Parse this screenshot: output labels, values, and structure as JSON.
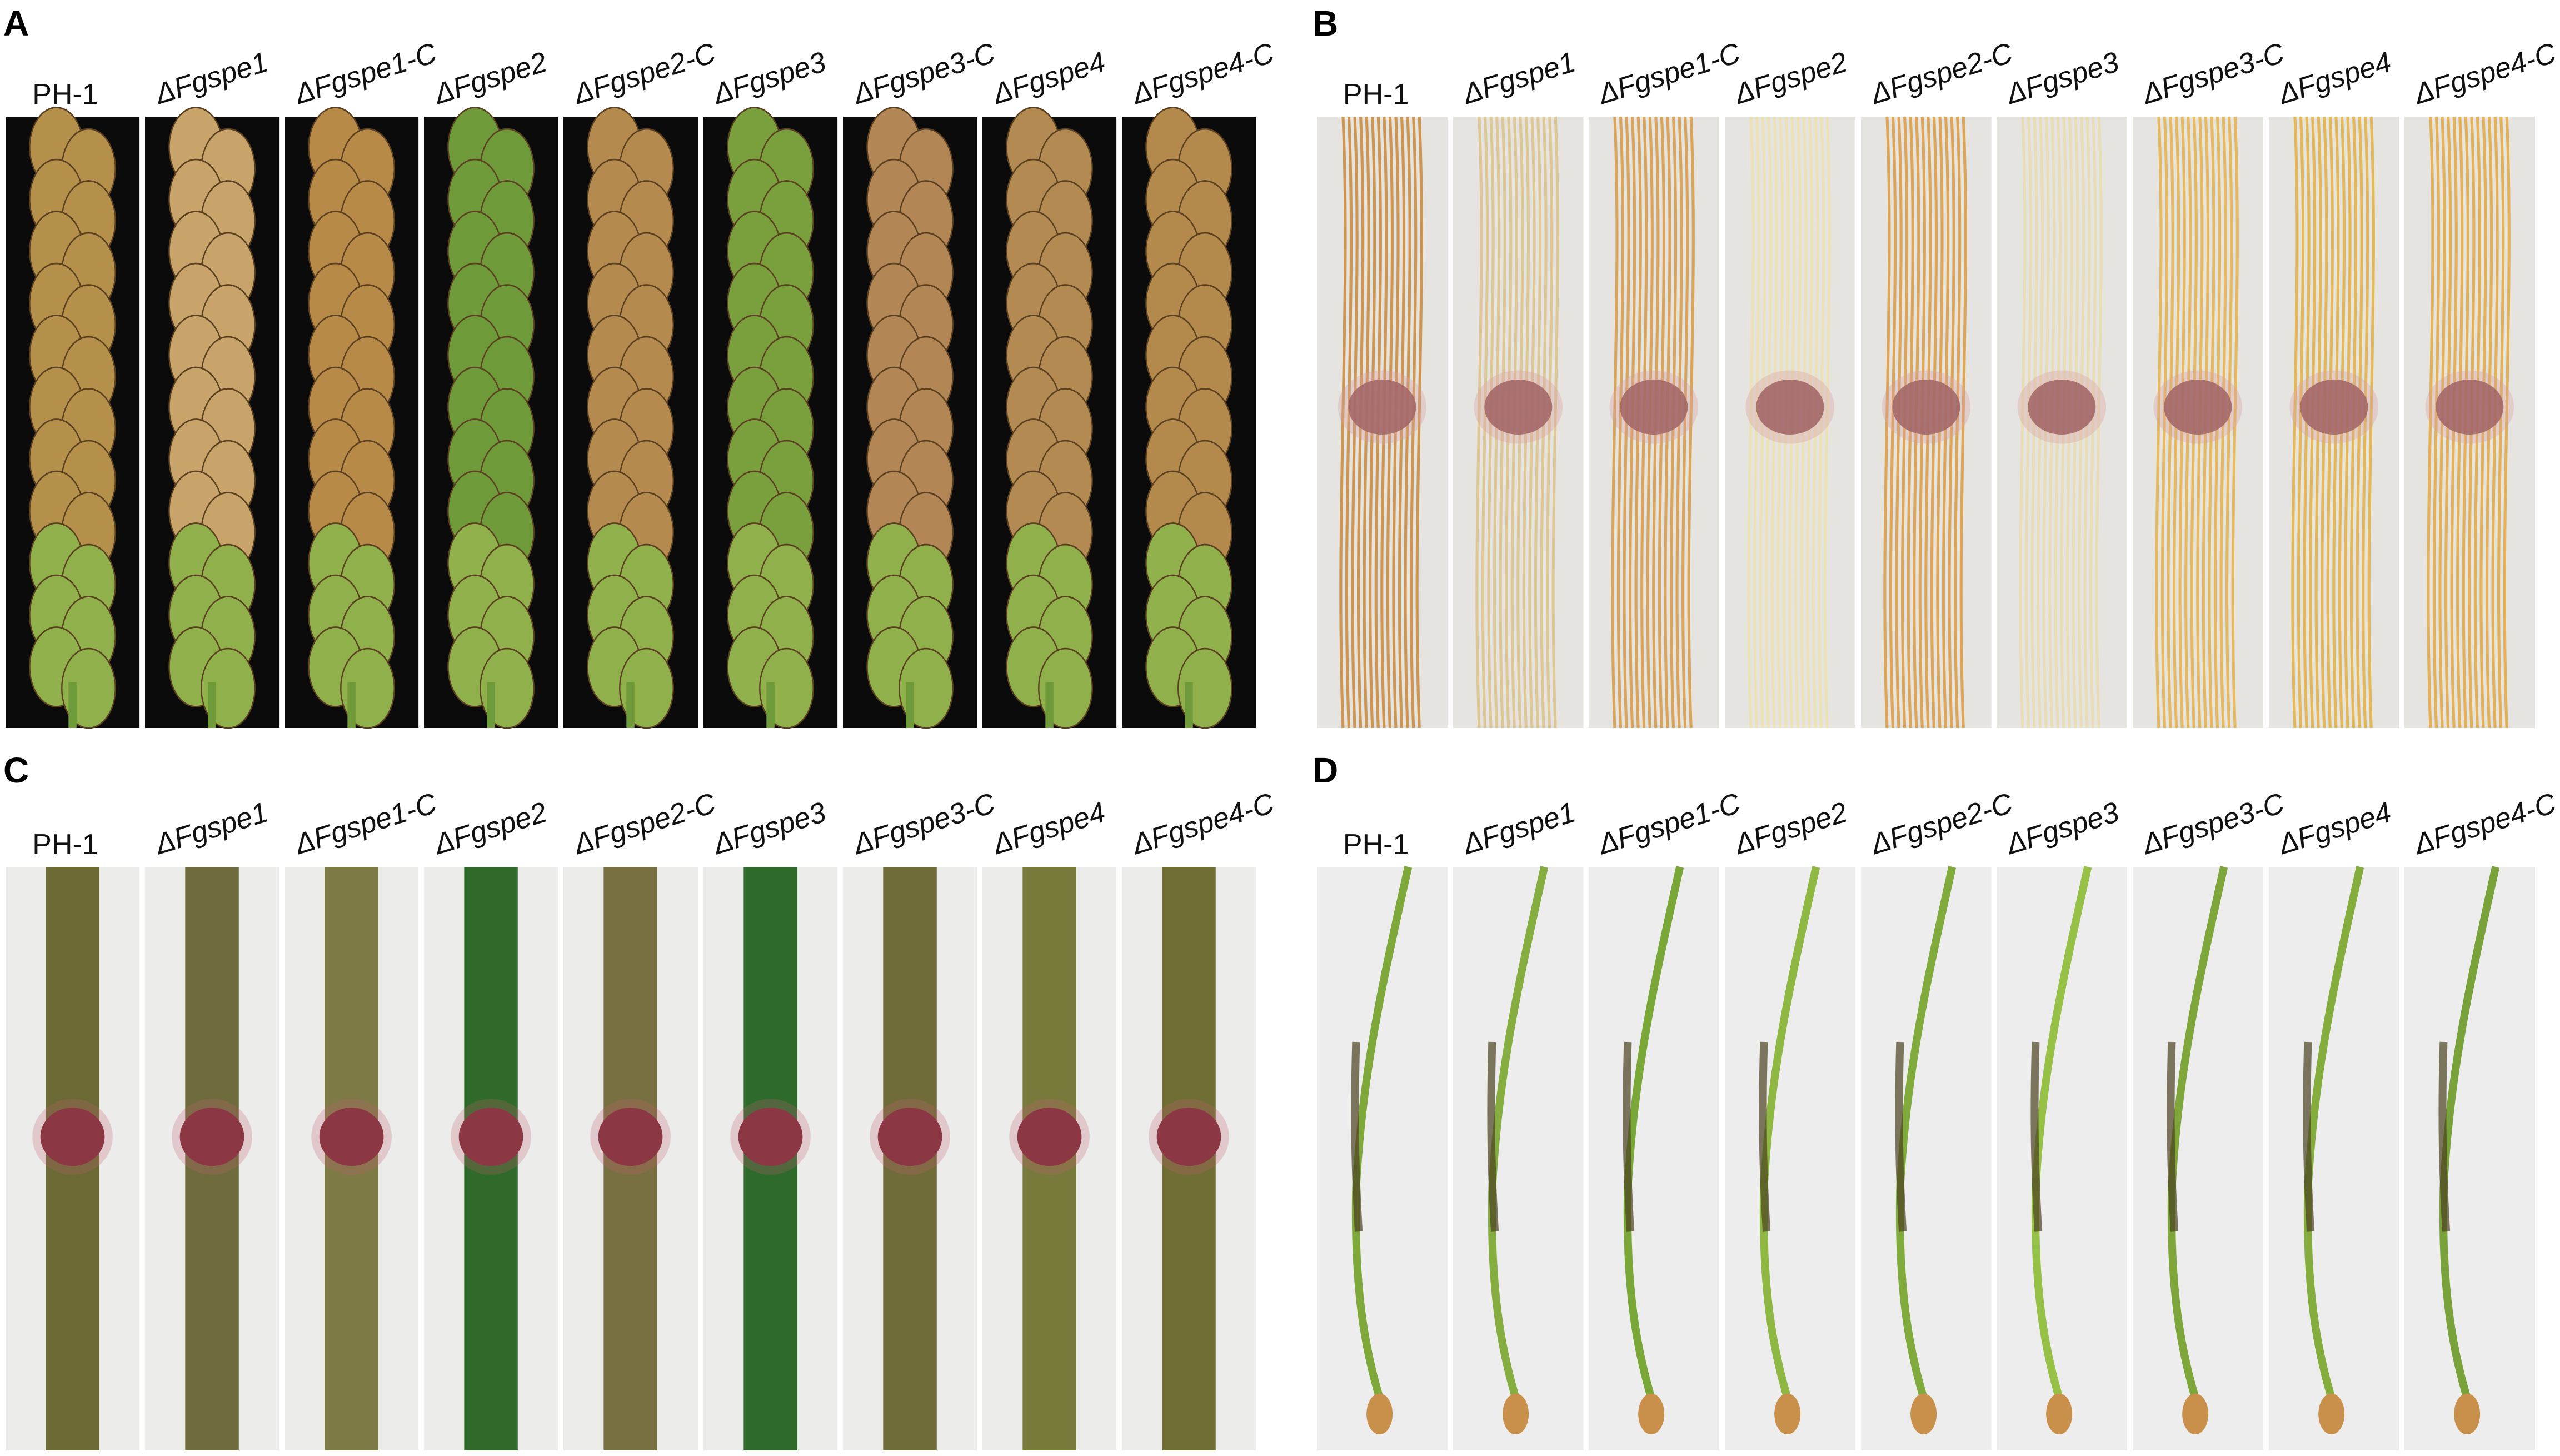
{
  "panels": [
    {
      "letter": "A",
      "kind": "spike",
      "labels": [
        "PH-1",
        "ΔFgspe1",
        "ΔFgspe1-C",
        "ΔFgspe2",
        "ΔFgspe2-C",
        "ΔFgspe3",
        "ΔFgspe3-C",
        "ΔFgspe4",
        "ΔFgspe4-C"
      ],
      "background": "#0b0b0b",
      "strip_colors": [
        "#b4904a",
        "#c8a46a",
        "#b88a48",
        "#6f9a3a",
        "#b58a4e",
        "#7aa03e",
        "#b38656",
        "#b28a52",
        "#b48a4c"
      ]
    },
    {
      "letter": "B",
      "kind": "root",
      "labels": [
        "PH-1",
        "ΔFgspe1",
        "ΔFgspe1-C",
        "ΔFgspe2",
        "ΔFgspe2-C",
        "ΔFgspe3",
        "ΔFgspe3-C",
        "ΔFgspe4",
        "ΔFgspe4-C"
      ],
      "background": "#e6e4e0",
      "strip_colors": [
        "#c88a3a",
        "#dcc28a",
        "#d69a44",
        "#ece2b0",
        "#d99a40",
        "#e6dcae",
        "#e4b248",
        "#e0b040",
        "#e0a840"
      ]
    },
    {
      "letter": "C",
      "kind": "coleoptile",
      "labels": [
        "PH-1",
        "ΔFgspe1",
        "ΔFgspe1-C",
        "ΔFgspe2",
        "ΔFgspe2-C",
        "ΔFgspe3",
        "ΔFgspe3-C",
        "ΔFgspe4",
        "ΔFgspe4-C"
      ],
      "background": "#ececea",
      "strip_colors": [
        "#6b6a34",
        "#6e6c3c",
        "#7e7a46",
        "#2f6a2a",
        "#787040",
        "#2e6a2c",
        "#706c3a",
        "#787a3c",
        "#6f6e34"
      ]
    },
    {
      "letter": "D",
      "kind": "seedling",
      "labels": [
        "PH-1",
        "ΔFgspe1",
        "ΔFgspe1-C",
        "ΔFgspe2",
        "ΔFgspe2-C",
        "ΔFgspe3",
        "ΔFgspe3-C",
        "ΔFgspe4",
        "ΔFgspe4-C"
      ],
      "background": "#ededed",
      "strip_colors": [
        "#7fa83a",
        "#86ad40",
        "#7aa838",
        "#8fb842",
        "#80aa3c",
        "#96c046",
        "#7ea63a",
        "#84ad3e",
        "#7aa23a"
      ]
    }
  ]
}
